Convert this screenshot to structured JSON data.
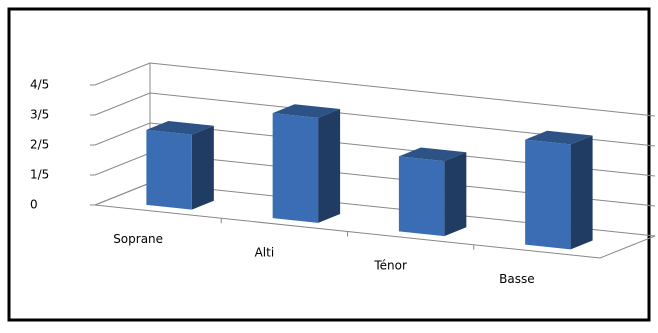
{
  "chart_data": {
    "type": "bar3d",
    "categories": [
      "Soprane",
      "Alti",
      "Ténor",
      "Basse"
    ],
    "values": [
      0.5,
      0.7,
      0.5,
      0.7
    ],
    "color": "#3a6db3",
    "ylim": [
      0,
      0.8
    ],
    "yticks": [
      0,
      {
        "value": 0.2,
        "label": "1/5"
      },
      {
        "value": 0.4,
        "label": "2/5"
      },
      {
        "value": 0.6,
        "label": "3/5"
      },
      {
        "value": 0.8,
        "label": "4/5"
      }
    ],
    "grid": true
  }
}
